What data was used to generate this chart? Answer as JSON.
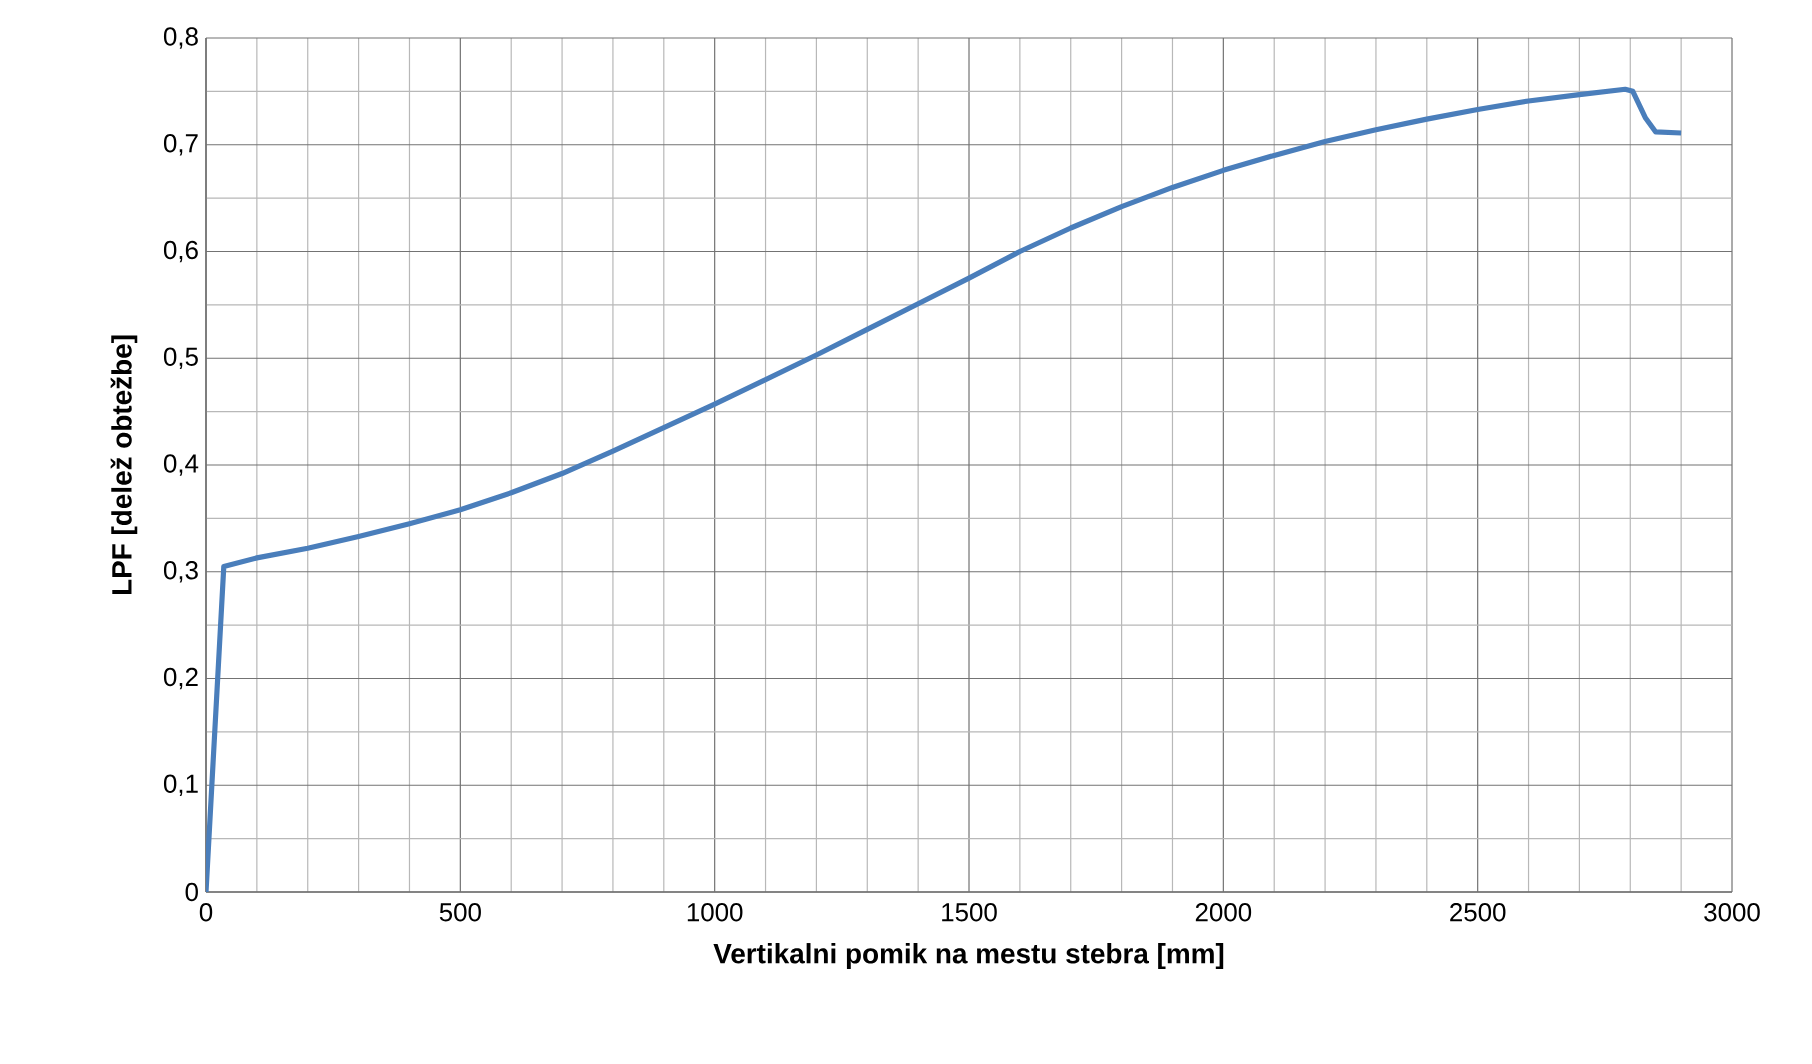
{
  "chart_data": {
    "type": "line",
    "xlabel": "Vertikalni pomik na mestu stebra [mm]",
    "ylabel": "LPF [delež obtežbe]",
    "xlim": [
      0,
      3000
    ],
    "ylim": [
      0,
      0.8
    ],
    "xticks": [
      0,
      500,
      1000,
      1500,
      2000,
      2500,
      3000
    ],
    "yticks": [
      0,
      {
        "value": 0.1,
        "label": "0,1"
      },
      {
        "value": 0.2,
        "label": "0,2"
      },
      {
        "value": 0.3,
        "label": "0,3"
      },
      {
        "value": 0.4,
        "label": "0,4"
      },
      {
        "value": 0.5,
        "label": "0,5"
      },
      {
        "value": 0.6,
        "label": "0,6"
      },
      {
        "value": 0.7,
        "label": "0,7"
      },
      {
        "value": 0.8,
        "label": "0,8"
      }
    ],
    "grid": true,
    "series": [
      {
        "color": "#4a7ebb",
        "x": [
          0,
          35,
          100,
          200,
          300,
          400,
          500,
          600,
          700,
          800,
          900,
          1000,
          1100,
          1200,
          1300,
          1400,
          1500,
          1600,
          1700,
          1800,
          1900,
          2000,
          2100,
          2200,
          2300,
          2400,
          2500,
          2600,
          2700,
          2790,
          2805,
          2830,
          2850,
          2900
        ],
        "values": [
          0,
          0.305,
          0.313,
          0.322,
          0.333,
          0.345,
          0.358,
          0.374,
          0.392,
          0.413,
          0.435,
          0.457,
          0.48,
          0.503,
          0.527,
          0.551,
          0.575,
          0.6,
          0.622,
          0.642,
          0.66,
          0.676,
          0.69,
          0.703,
          0.714,
          0.724,
          0.733,
          0.741,
          0.747,
          0.752,
          0.75,
          0.725,
          0.712,
          0.711
        ]
      }
    ]
  }
}
